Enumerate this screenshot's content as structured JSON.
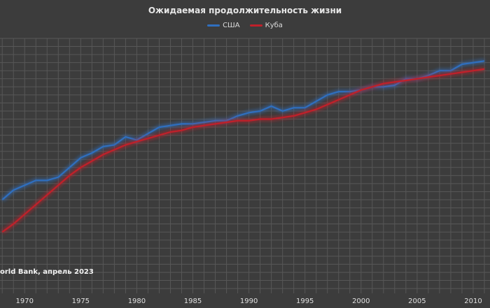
{
  "chart_data": {
    "type": "line",
    "title": "Ожидаемая продолжительность жизни",
    "source": "orld Bank, апрель 2023",
    "xlim": [
      1967.8,
      2011.5
    ],
    "ylim": [
      64.2,
      80.0
    ],
    "x_ticks": [
      1970,
      1975,
      1980,
      1985,
      1990,
      1995,
      2000,
      2005,
      2010
    ],
    "grid": true,
    "legend": "top-center",
    "series": [
      {
        "name": "США",
        "color": "#2f6fbf",
        "x": [
          1968,
          1969,
          1970,
          1971,
          1972,
          1973,
          1974,
          1975,
          1976,
          1977,
          1978,
          1979,
          1980,
          1981,
          1982,
          1983,
          1984,
          1985,
          1986,
          1987,
          1988,
          1989,
          1990,
          1991,
          1992,
          1993,
          1994,
          1995,
          1996,
          1997,
          1998,
          1999,
          2000,
          2001,
          2002,
          2003,
          2004,
          2005,
          2006,
          2007,
          2008,
          2009,
          2010,
          2011
        ],
        "values": [
          70.0,
          70.6,
          70.9,
          71.2,
          71.2,
          71.4,
          72.0,
          72.6,
          72.9,
          73.3,
          73.4,
          73.9,
          73.7,
          74.1,
          74.5,
          74.6,
          74.7,
          74.7,
          74.8,
          74.9,
          74.9,
          75.2,
          75.4,
          75.5,
          75.8,
          75.5,
          75.7,
          75.7,
          76.1,
          76.5,
          76.7,
          76.7,
          76.8,
          77.0,
          77.0,
          77.1,
          77.5,
          77.5,
          77.7,
          78.0,
          78.0,
          78.4,
          78.5,
          78.6
        ]
      },
      {
        "name": "Куба",
        "color": "#c0202a",
        "x": [
          1968,
          1969,
          1970,
          1971,
          1972,
          1973,
          1974,
          1975,
          1976,
          1977,
          1978,
          1979,
          1980,
          1981,
          1982,
          1983,
          1984,
          1985,
          1986,
          1987,
          1988,
          1989,
          1990,
          1991,
          1992,
          1993,
          1994,
          1995,
          1996,
          1997,
          1998,
          1999,
          2000,
          2001,
          2002,
          2003,
          2004,
          2005,
          2006,
          2007,
          2008,
          2009,
          2010,
          2011
        ],
        "values": [
          68.0,
          68.5,
          69.1,
          69.7,
          70.3,
          70.9,
          71.5,
          72.0,
          72.4,
          72.8,
          73.1,
          73.4,
          73.6,
          73.8,
          74.0,
          74.2,
          74.3,
          74.5,
          74.6,
          74.7,
          74.8,
          74.9,
          74.9,
          75.0,
          75.0,
          75.1,
          75.2,
          75.4,
          75.6,
          75.9,
          76.2,
          76.5,
          76.8,
          77.0,
          77.2,
          77.3,
          77.4,
          77.5,
          77.6,
          77.7,
          77.8,
          77.9,
          78.0,
          78.1
        ]
      }
    ]
  }
}
